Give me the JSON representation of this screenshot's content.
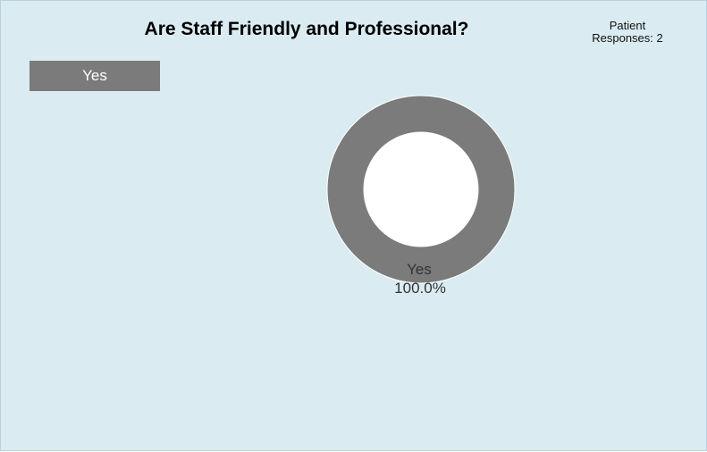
{
  "header": {
    "title": "Are Staff Friendly and Professional?",
    "responses_line1": "Patient",
    "responses_line2": "Responses: 2"
  },
  "legend": {
    "items": [
      {
        "label": "Yes",
        "color": "#7b7b7b"
      }
    ]
  },
  "chart_data": {
    "type": "pie",
    "variant": "donut",
    "title": "Are Staff Friendly and Professional?",
    "categories": [
      "Yes"
    ],
    "values": [
      100.0
    ],
    "labels": [
      "Yes",
      "100.0%"
    ],
    "colors": [
      "#7b7b7b"
    ],
    "legend": "top-left"
  },
  "colors": {
    "background": "#daecf2",
    "slice": "#7b7b7b",
    "hole": "#ffffff"
  }
}
